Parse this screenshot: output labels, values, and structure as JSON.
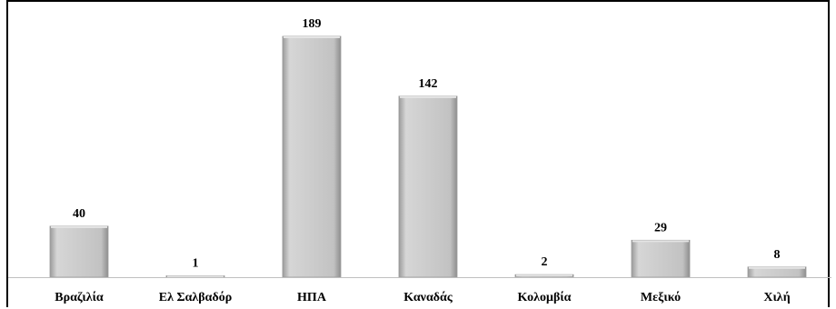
{
  "chart_data": {
    "type": "bar",
    "title": "",
    "xlabel": "",
    "ylabel": "",
    "categories": [
      "Βραζιλία",
      "Ελ Σαλβαδόρ",
      "ΗΠΑ",
      "Καναδάς",
      "Κολομβία",
      "Μεξικό",
      "Χιλή"
    ],
    "values": [
      40,
      1,
      189,
      142,
      2,
      29,
      8
    ],
    "value_labels": [
      "40",
      "1",
      "189",
      "142",
      "2",
      "29",
      "8"
    ],
    "ylim": [
      0,
      189
    ],
    "grid": false,
    "legend": "none",
    "colors": {
      "bar_fill": "#c8c8c8",
      "bar_light": "#e4e4e4",
      "bar_dark": "#9a9a9a",
      "axis": "#bfbfbf",
      "text": "#000000"
    }
  }
}
